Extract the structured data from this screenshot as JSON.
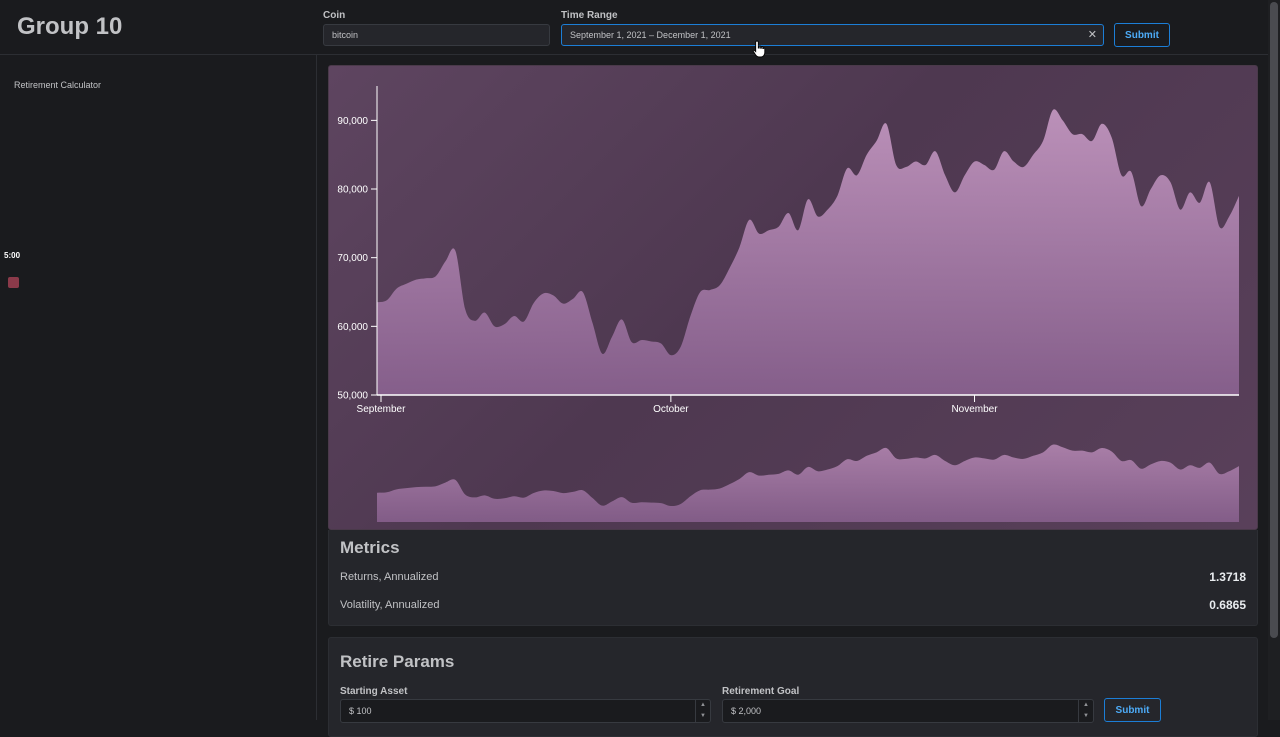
{
  "header": {
    "brand": "Group 10",
    "coin_label": "Coin",
    "coin_value": "bitcoin",
    "range_label": "Time Range",
    "range_value": "September 1, 2021 – December 1, 2021",
    "clear_icon": "close-icon",
    "submit_label": "Submit"
  },
  "sidebar": {
    "nav_item": "Retirement Calculator",
    "timer": "5:00"
  },
  "chart_data": {
    "type": "area",
    "series": [
      {
        "values": [
          63500,
          63800,
          65500,
          66200,
          66800,
          67000,
          67300,
          69500,
          71000,
          62500,
          60800,
          62000,
          60000,
          60300,
          61500,
          60700,
          63400,
          64800,
          64500,
          63300,
          64000,
          65000,
          60500,
          56000,
          58500,
          61000,
          57700,
          58000,
          57800,
          57500,
          55800,
          57000,
          61500,
          65000,
          65300,
          66000,
          68500,
          71500,
          75500,
          73500,
          74000,
          74500,
          76500,
          74000,
          78500,
          76000,
          77000,
          79000,
          83000,
          82000,
          85000,
          87000,
          89500,
          83500,
          83200,
          84000,
          83500,
          85500,
          82000,
          79500,
          82000,
          84000,
          83500,
          82800,
          85500,
          84000,
          83200,
          85000,
          87000,
          91500,
          90000,
          88000,
          88000,
          87000,
          89500,
          87500,
          82000,
          82500,
          77500,
          80000,
          82000,
          81000,
          77000,
          79500,
          78000,
          81000,
          74500,
          76000,
          79000
        ]
      }
    ],
    "x_ticks": [
      "September",
      "October",
      "November"
    ],
    "y_ticks": [
      50000,
      60000,
      70000,
      80000,
      90000
    ],
    "y_tick_labels": [
      "50,000",
      "60,000",
      "70,000",
      "80,000",
      "90,000"
    ],
    "ylim": [
      50000,
      95000
    ],
    "xlim_days": [
      0,
      88
    ],
    "x_tick_days": [
      0,
      30,
      61
    ],
    "grid": false,
    "brush_overview": true,
    "colors": {
      "fill_top": "#c79ac4",
      "fill_bottom": "#8a6290",
      "axis": "#ffffff"
    }
  },
  "metrics": {
    "title": "Metrics",
    "rows": [
      {
        "label": "Returns, Annualized",
        "value": "1.3718"
      },
      {
        "label": "Volatility, Annualized",
        "value": "0.6865"
      }
    ]
  },
  "retire": {
    "title": "Retire Params",
    "starting_label": "Starting Asset",
    "starting_value": "$ 100",
    "goal_label": "Retirement Goal",
    "goal_value": "$ 2,000",
    "submit_label": "Submit"
  }
}
